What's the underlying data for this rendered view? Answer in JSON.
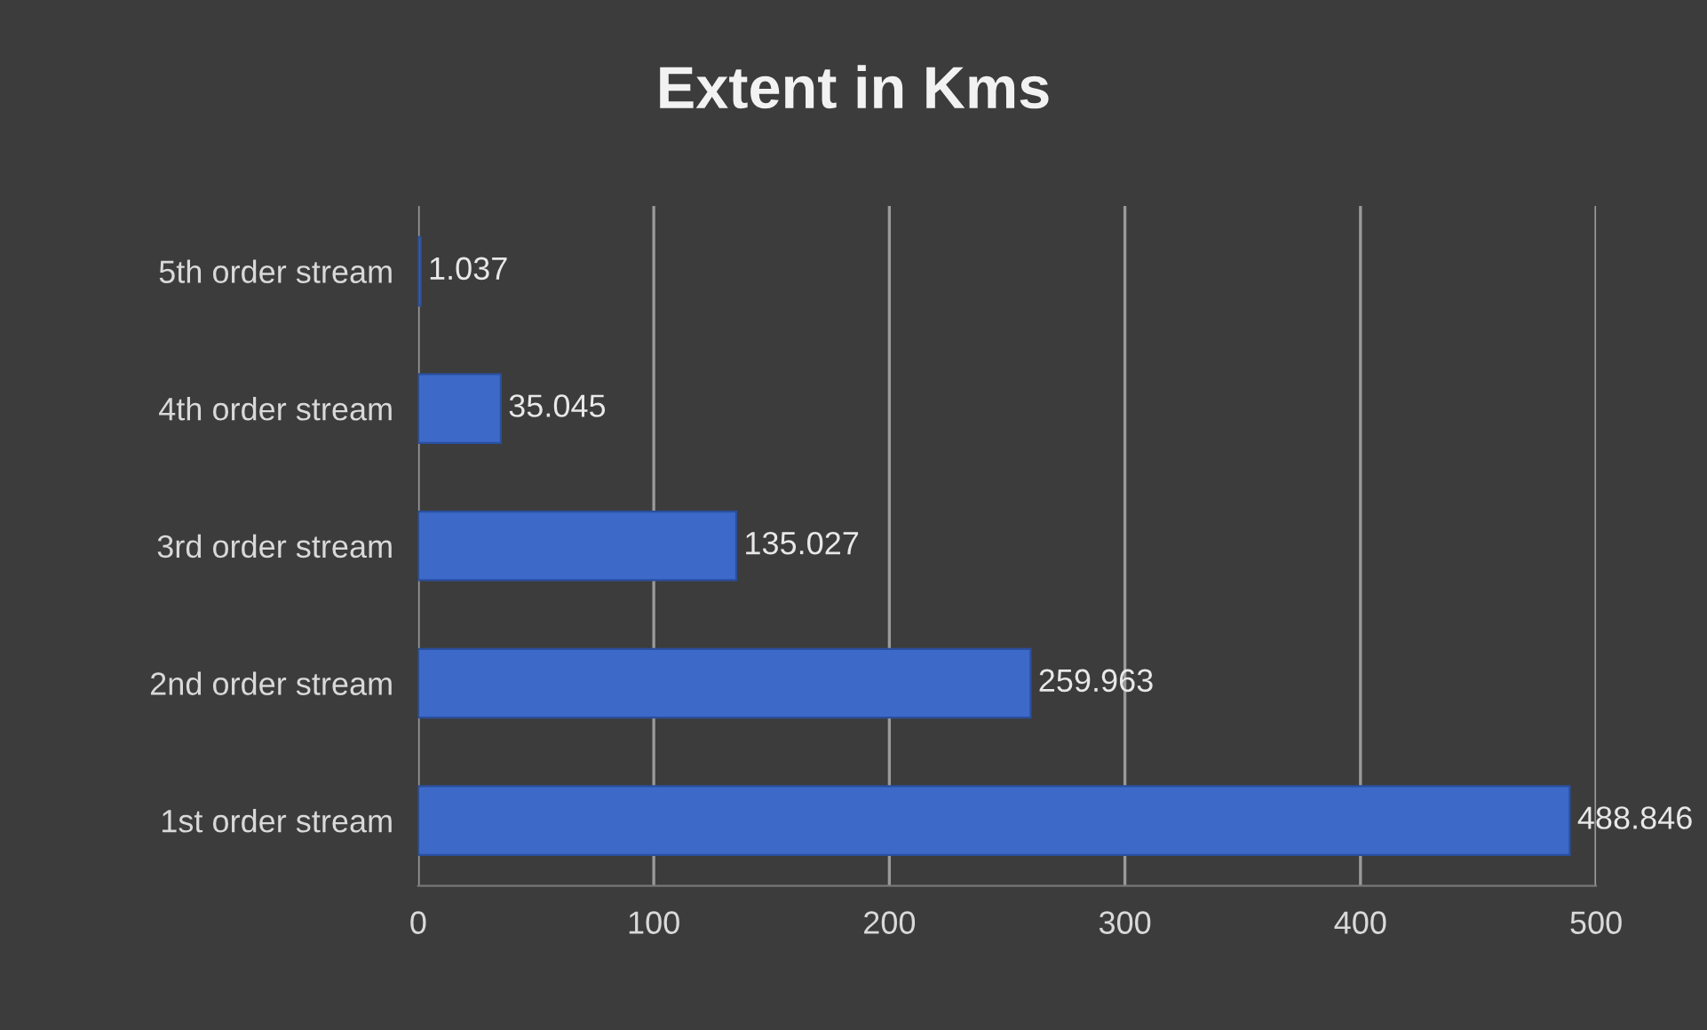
{
  "chart_data": {
    "type": "bar",
    "orientation": "horizontal",
    "title": "Extent in Kms",
    "categories": [
      "5th order stream",
      "4th order stream",
      "3rd order stream",
      "2nd order stream",
      "1st order stream"
    ],
    "values": [
      1.037,
      35.045,
      135.027,
      259.963,
      488.846
    ],
    "color": "#3d6ac9",
    "xlim": [
      0,
      500
    ],
    "xticks": [
      0,
      100,
      200,
      300,
      400,
      500
    ],
    "grid": "x",
    "data_labels": true
  }
}
